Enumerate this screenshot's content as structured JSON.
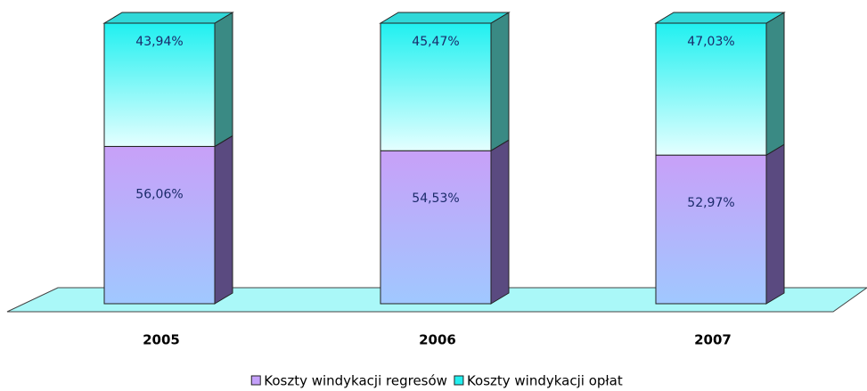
{
  "chart_data": {
    "type": "stacked_bar_3d",
    "categories": [
      "2005",
      "2006",
      "2007"
    ],
    "ylim": [
      0,
      100
    ],
    "series": [
      {
        "name": "Koszty windykacji regresów",
        "color": "#c4a0fa",
        "values": [
          56.06,
          54.53,
          52.97
        ],
        "value_labels": [
          "56,06%",
          "54,53%",
          "52,97%"
        ]
      },
      {
        "name": "Koszty windykacji opłat",
        "color": "#22eeee",
        "values": [
          43.94,
          45.47,
          47.03
        ],
        "value_labels": [
          "43,94%",
          "45,47%",
          "47,03%"
        ]
      }
    ]
  }
}
